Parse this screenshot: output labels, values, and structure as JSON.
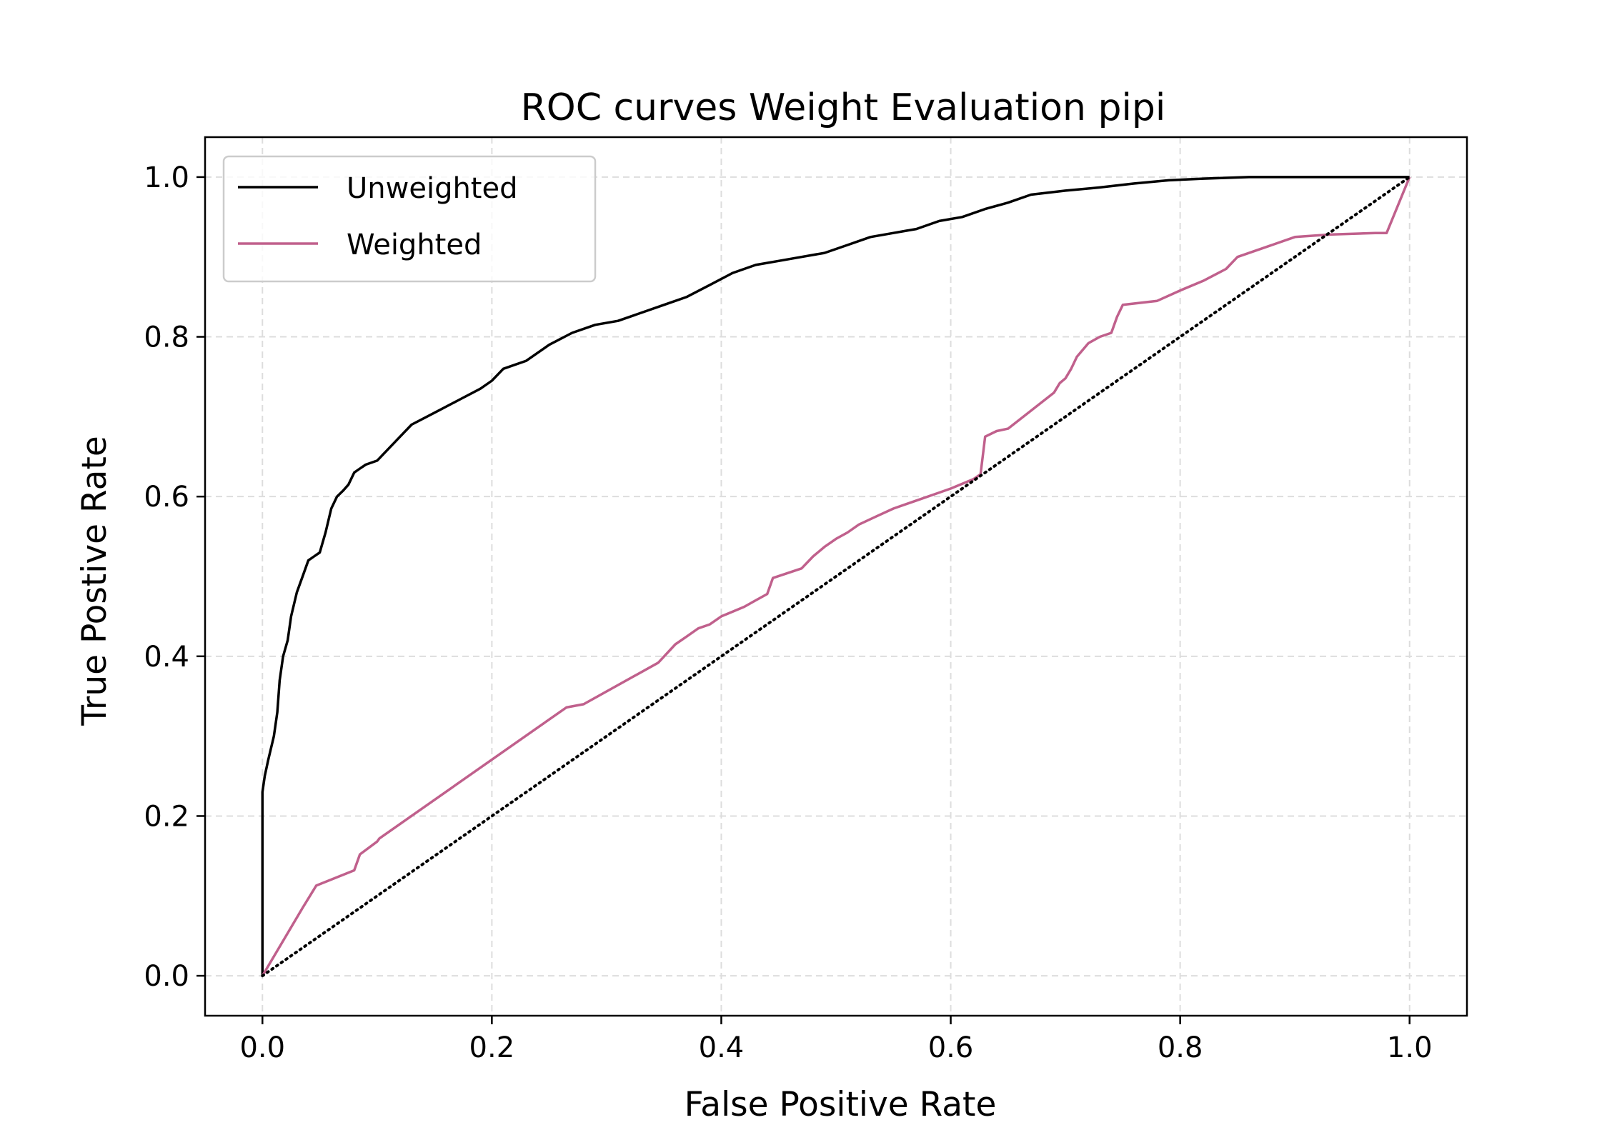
{
  "chart_data": {
    "type": "line",
    "title": "ROC curves Weight Evaluation pipi",
    "xlabel": "False Positive Rate",
    "ylabel": "True Postive Rate",
    "xlim": [
      -0.05,
      1.05
    ],
    "ylim": [
      -0.05,
      1.05
    ],
    "xticks": [
      "0.0",
      "0.2",
      "0.4",
      "0.6",
      "0.8",
      "1.0"
    ],
    "yticks": [
      "0.0",
      "0.2",
      "0.4",
      "0.6",
      "0.8",
      "1.0"
    ],
    "grid": true,
    "legend_position": "upper-left",
    "series": [
      {
        "name": "Unweighted",
        "color": "#000000",
        "style": "solid",
        "x": [
          0.0,
          0.0,
          0.002,
          0.005,
          0.01,
          0.013,
          0.015,
          0.018,
          0.022,
          0.025,
          0.03,
          0.035,
          0.04,
          0.045,
          0.05,
          0.055,
          0.06,
          0.065,
          0.07,
          0.075,
          0.08,
          0.085,
          0.09,
          0.1,
          0.11,
          0.12,
          0.13,
          0.15,
          0.17,
          0.19,
          0.2,
          0.21,
          0.23,
          0.25,
          0.27,
          0.29,
          0.31,
          0.33,
          0.35,
          0.37,
          0.39,
          0.41,
          0.43,
          0.45,
          0.47,
          0.49,
          0.51,
          0.53,
          0.55,
          0.57,
          0.59,
          0.61,
          0.63,
          0.65,
          0.67,
          0.7,
          0.73,
          0.76,
          0.79,
          0.82,
          0.86,
          0.9,
          0.95,
          1.0
        ],
        "y": [
          0.0,
          0.23,
          0.25,
          0.27,
          0.3,
          0.33,
          0.37,
          0.4,
          0.42,
          0.45,
          0.48,
          0.5,
          0.52,
          0.525,
          0.53,
          0.555,
          0.585,
          0.6,
          0.607,
          0.615,
          0.63,
          0.635,
          0.64,
          0.645,
          0.66,
          0.675,
          0.69,
          0.705,
          0.72,
          0.735,
          0.745,
          0.76,
          0.77,
          0.79,
          0.805,
          0.815,
          0.82,
          0.83,
          0.84,
          0.85,
          0.865,
          0.88,
          0.89,
          0.895,
          0.9,
          0.905,
          0.915,
          0.925,
          0.93,
          0.935,
          0.945,
          0.95,
          0.96,
          0.968,
          0.978,
          0.983,
          0.987,
          0.992,
          0.996,
          0.998,
          1.0,
          1.0,
          1.0,
          1.0
        ]
      },
      {
        "name": "Weighted",
        "color": "#c0608c",
        "style": "solid",
        "x": [
          0.0,
          0.035,
          0.047,
          0.08,
          0.085,
          0.1,
          0.102,
          0.265,
          0.28,
          0.345,
          0.36,
          0.37,
          0.38,
          0.39,
          0.4,
          0.41,
          0.42,
          0.43,
          0.44,
          0.445,
          0.47,
          0.48,
          0.49,
          0.5,
          0.51,
          0.52,
          0.535,
          0.55,
          0.57,
          0.59,
          0.6,
          0.62,
          0.626,
          0.63,
          0.64,
          0.65,
          0.69,
          0.695,
          0.7,
          0.705,
          0.71,
          0.72,
          0.73,
          0.74,
          0.745,
          0.75,
          0.78,
          0.8,
          0.82,
          0.84,
          0.85,
          0.88,
          0.9,
          0.93,
          0.97,
          0.98,
          1.0
        ],
        "y": [
          0.0,
          0.085,
          0.113,
          0.132,
          0.152,
          0.168,
          0.172,
          0.336,
          0.34,
          0.392,
          0.415,
          0.425,
          0.435,
          0.44,
          0.45,
          0.456,
          0.462,
          0.47,
          0.478,
          0.498,
          0.51,
          0.525,
          0.537,
          0.547,
          0.555,
          0.565,
          0.575,
          0.585,
          0.595,
          0.605,
          0.61,
          0.622,
          0.628,
          0.675,
          0.682,
          0.685,
          0.73,
          0.742,
          0.748,
          0.76,
          0.775,
          0.792,
          0.8,
          0.805,
          0.825,
          0.84,
          0.845,
          0.858,
          0.87,
          0.885,
          0.9,
          0.915,
          0.925,
          0.928,
          0.93,
          0.93,
          1.0
        ]
      },
      {
        "name": "",
        "color": "#000000",
        "style": "dotted",
        "x": [
          0.0,
          1.0
        ],
        "y": [
          0.0,
          1.0
        ]
      }
    ]
  }
}
